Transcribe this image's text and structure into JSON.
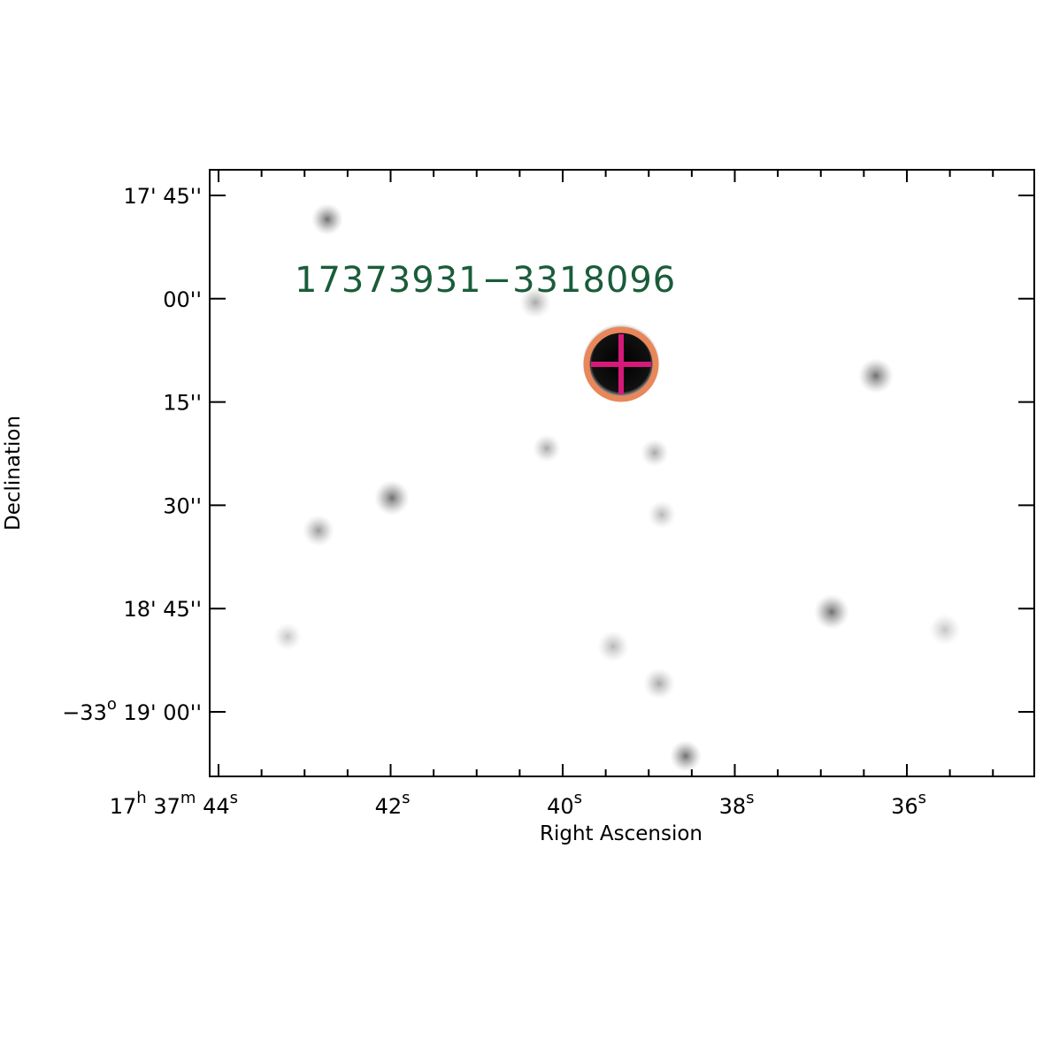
{
  "plot": {
    "label": "17373931−3318096",
    "x_axis": {
      "title": "Right Ascension",
      "ticks": [
        [
          "17",
          "h",
          " 37",
          "m",
          " 44",
          "s"
        ],
        [
          "42",
          "s"
        ],
        [
          "40",
          "s"
        ],
        [
          "38",
          "s"
        ],
        [
          "36",
          "s"
        ]
      ]
    },
    "y_axis": {
      "title": "Declination",
      "ticks": [
        [
          "17' 45''"
        ],
        [
          "00''"
        ],
        [
          "15''"
        ],
        [
          "30''"
        ],
        [
          "18' 45''"
        ],
        [
          "−33",
          "o",
          " 19' 00''"
        ]
      ]
    }
  }
}
